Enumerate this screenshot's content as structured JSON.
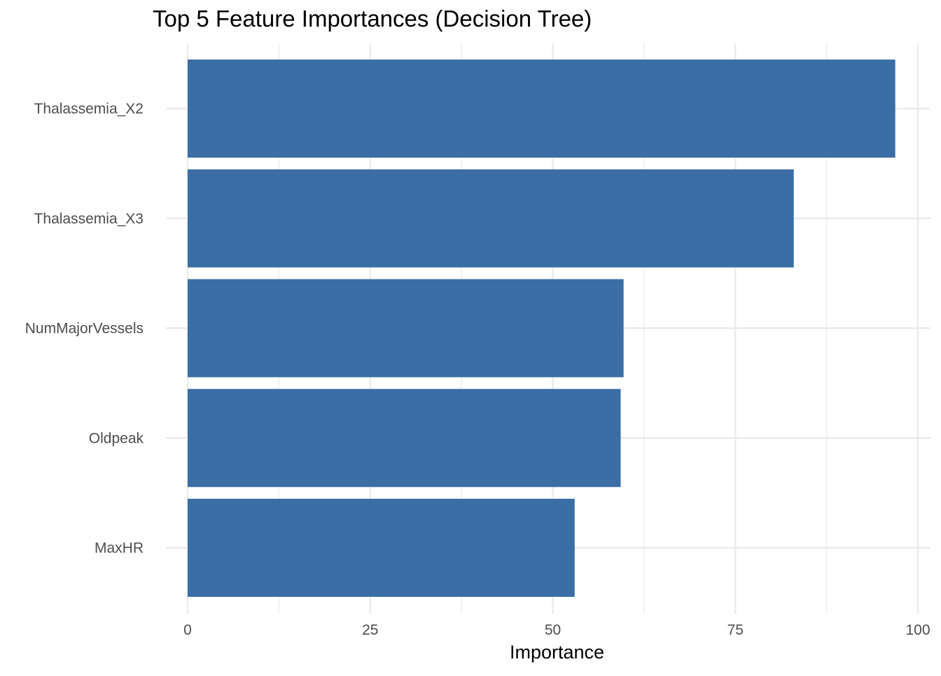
{
  "chart_data": {
    "type": "bar",
    "orientation": "horizontal",
    "title": "Top 5 Feature Importances (Decision Tree)",
    "xlabel": "Importance",
    "ylabel": "",
    "categories": [
      "Thalassemia_X2",
      "Thalassemia_X3",
      "NumMajorVessels",
      "Oldpeak",
      "MaxHR"
    ],
    "values": [
      96.9,
      83.0,
      59.7,
      59.3,
      53.0
    ],
    "xlim": [
      0,
      100
    ],
    "xticks": [
      0,
      25,
      50,
      75,
      100
    ],
    "xtick_labels": [
      "0",
      "25",
      "50",
      "75",
      "100"
    ],
    "grid": true,
    "legend": "none",
    "colors": {
      "bar": "#3a6ea5",
      "grid": "#ebebeb",
      "text": "#4d4d4d"
    }
  }
}
